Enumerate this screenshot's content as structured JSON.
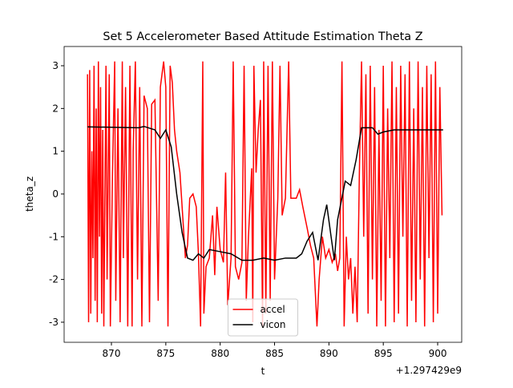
{
  "chart_data": {
    "type": "line",
    "title": "Set 5 Accelerometer Based Attitude Estimation Theta Z",
    "x_label": "t",
    "y_label": "theta_z",
    "x_offset_label": "+1.297429e9",
    "xlim": [
      865.65,
      902.21
    ],
    "ylim": [
      -3.47,
      3.45
    ],
    "xticks": [
      870,
      875,
      880,
      885,
      890,
      895,
      900
    ],
    "yticks": [
      -3,
      -2,
      -1,
      0,
      1,
      2,
      3
    ],
    "legend": "lower center",
    "series": [
      {
        "name": "accel",
        "color": "#ff0000",
        "x": [
          867.8,
          867.9,
          868.0,
          868.1,
          868.2,
          868.3,
          868.4,
          868.5,
          868.6,
          868.7,
          868.8,
          868.9,
          869.0,
          869.1,
          869.2,
          869.3,
          869.5,
          869.6,
          869.8,
          869.9,
          870.1,
          870.3,
          870.4,
          870.6,
          870.8,
          871.0,
          871.1,
          871.3,
          871.5,
          871.7,
          871.9,
          872.0,
          872.2,
          872.4,
          872.6,
          872.8,
          873.0,
          873.3,
          873.5,
          873.7,
          874.0,
          874.3,
          874.5,
          874.8,
          875.0,
          875.2,
          875.4,
          875.6,
          875.8,
          876.0,
          876.3,
          876.5,
          876.8,
          877.0,
          877.2,
          877.5,
          877.8,
          878.0,
          878.2,
          878.4,
          878.5,
          878.7,
          879.0,
          879.3,
          879.5,
          879.7,
          880.0,
          880.3,
          880.5,
          880.7,
          881.0,
          881.2,
          881.4,
          881.7,
          882.0,
          882.2,
          882.4,
          882.6,
          882.9,
          883.0,
          883.1,
          883.3,
          883.5,
          883.7,
          883.9,
          884.0,
          884.2,
          884.4,
          884.6,
          884.8,
          885.0,
          885.3,
          885.5,
          885.7,
          886.0,
          886.3,
          886.5,
          887.0,
          887.3,
          887.6,
          888.0,
          888.3,
          888.6,
          888.9,
          889.1,
          889.4,
          889.7,
          890.0,
          890.3,
          890.6,
          890.8,
          891.0,
          891.2,
          891.4,
          891.6,
          891.8,
          892.0,
          892.2,
          892.4,
          892.6,
          892.8,
          893.0,
          893.2,
          893.4,
          893.6,
          893.8,
          894.0,
          894.2,
          894.4,
          894.6,
          894.8,
          895.0,
          895.2,
          895.4,
          895.6,
          895.8,
          896.0,
          896.2,
          896.4,
          896.6,
          896.8,
          897.0,
          897.2,
          897.4,
          897.6,
          897.8,
          898.0,
          898.2,
          898.4,
          898.6,
          898.8,
          899.0,
          899.2,
          899.4,
          899.6,
          899.8,
          900.0,
          900.2,
          900.4
        ],
        "values": [
          2.8,
          -3.0,
          2.9,
          -2.8,
          1.0,
          -1.5,
          3.0,
          -2.5,
          2.0,
          -3.0,
          3.1,
          -1.0,
          2.5,
          -2.8,
          1.5,
          -3.1,
          3.0,
          -2.0,
          2.8,
          -3.1,
          0.5,
          3.1,
          -2.5,
          2.0,
          -3.0,
          3.1,
          -1.5,
          2.5,
          -3.1,
          3.0,
          -3.1,
          1.0,
          3.1,
          -2.0,
          2.5,
          -3.1,
          2.3,
          2.0,
          -3.0,
          2.1,
          2.2,
          -2.5,
          2.5,
          3.1,
          2.5,
          -3.1,
          3.0,
          2.6,
          1.5,
          1.0,
          0.5,
          -0.3,
          -1.5,
          -1.2,
          -0.1,
          0.0,
          -0.3,
          -1.4,
          -3.1,
          3.1,
          -2.8,
          -1.7,
          -1.5,
          -0.5,
          -1.9,
          -0.3,
          -1.3,
          -1.6,
          0.5,
          -2.6,
          -1.5,
          3.1,
          -1.7,
          -2.0,
          -1.6,
          3.0,
          -2.5,
          -1.0,
          0.6,
          -3.0,
          3.0,
          0.5,
          1.5,
          2.2,
          -3.1,
          3.1,
          -2.8,
          3.0,
          -2.5,
          3.1,
          -2.0,
          -0.1,
          3.0,
          -0.5,
          -0.1,
          3.1,
          -0.1,
          -0.1,
          0.1,
          -0.3,
          -0.8,
          -1.2,
          -1.5,
          -3.1,
          -2.0,
          -1.0,
          -1.5,
          -1.3,
          -1.6,
          -1.4,
          -1.8,
          -1.5,
          3.1,
          -3.1,
          -1.0,
          -2.0,
          -1.5,
          -2.8,
          -1.7,
          -3.0,
          0.5,
          3.1,
          -1.0,
          2.8,
          -2.8,
          3.0,
          -2.0,
          2.5,
          -3.1,
          1.5,
          -2.5,
          3.0,
          -3.1,
          2.0,
          -1.5,
          3.1,
          -3.0,
          2.5,
          -2.8,
          3.0,
          -1.0,
          2.8,
          -3.1,
          3.1,
          -2.5,
          2.0,
          -3.0,
          3.1,
          -2.0,
          2.5,
          -3.1,
          3.0,
          -1.5,
          2.8,
          -3.0,
          3.1,
          -2.8,
          2.5,
          -0.5
        ]
      },
      {
        "name": "vicon",
        "color": "#000000",
        "x": [
          867.8,
          872.5,
          873.0,
          874.0,
          874.5,
          875.0,
          875.5,
          876.0,
          876.5,
          877.0,
          877.5,
          878.0,
          878.5,
          879.0,
          880.0,
          881.0,
          882.0,
          883.0,
          884.0,
          885.0,
          886.0,
          887.0,
          887.5,
          888.0,
          888.5,
          889.0,
          889.5,
          889.8,
          890.2,
          890.5,
          890.8,
          891.5,
          892.0,
          892.5,
          893.0,
          893.5,
          894.0,
          894.5,
          895.0,
          896.0,
          900.5
        ],
        "values": [
          1.57,
          1.55,
          1.58,
          1.5,
          1.3,
          1.5,
          1.1,
          0.0,
          -0.9,
          -1.5,
          -1.55,
          -1.4,
          -1.5,
          -1.3,
          -1.35,
          -1.4,
          -1.55,
          -1.55,
          -1.5,
          -1.55,
          -1.5,
          -1.5,
          -1.4,
          -1.1,
          -0.9,
          -1.55,
          -0.6,
          -0.25,
          -1.0,
          -1.55,
          -0.6,
          0.3,
          0.2,
          0.8,
          1.55,
          1.55,
          1.55,
          1.4,
          1.45,
          1.5,
          1.5
        ]
      }
    ]
  }
}
